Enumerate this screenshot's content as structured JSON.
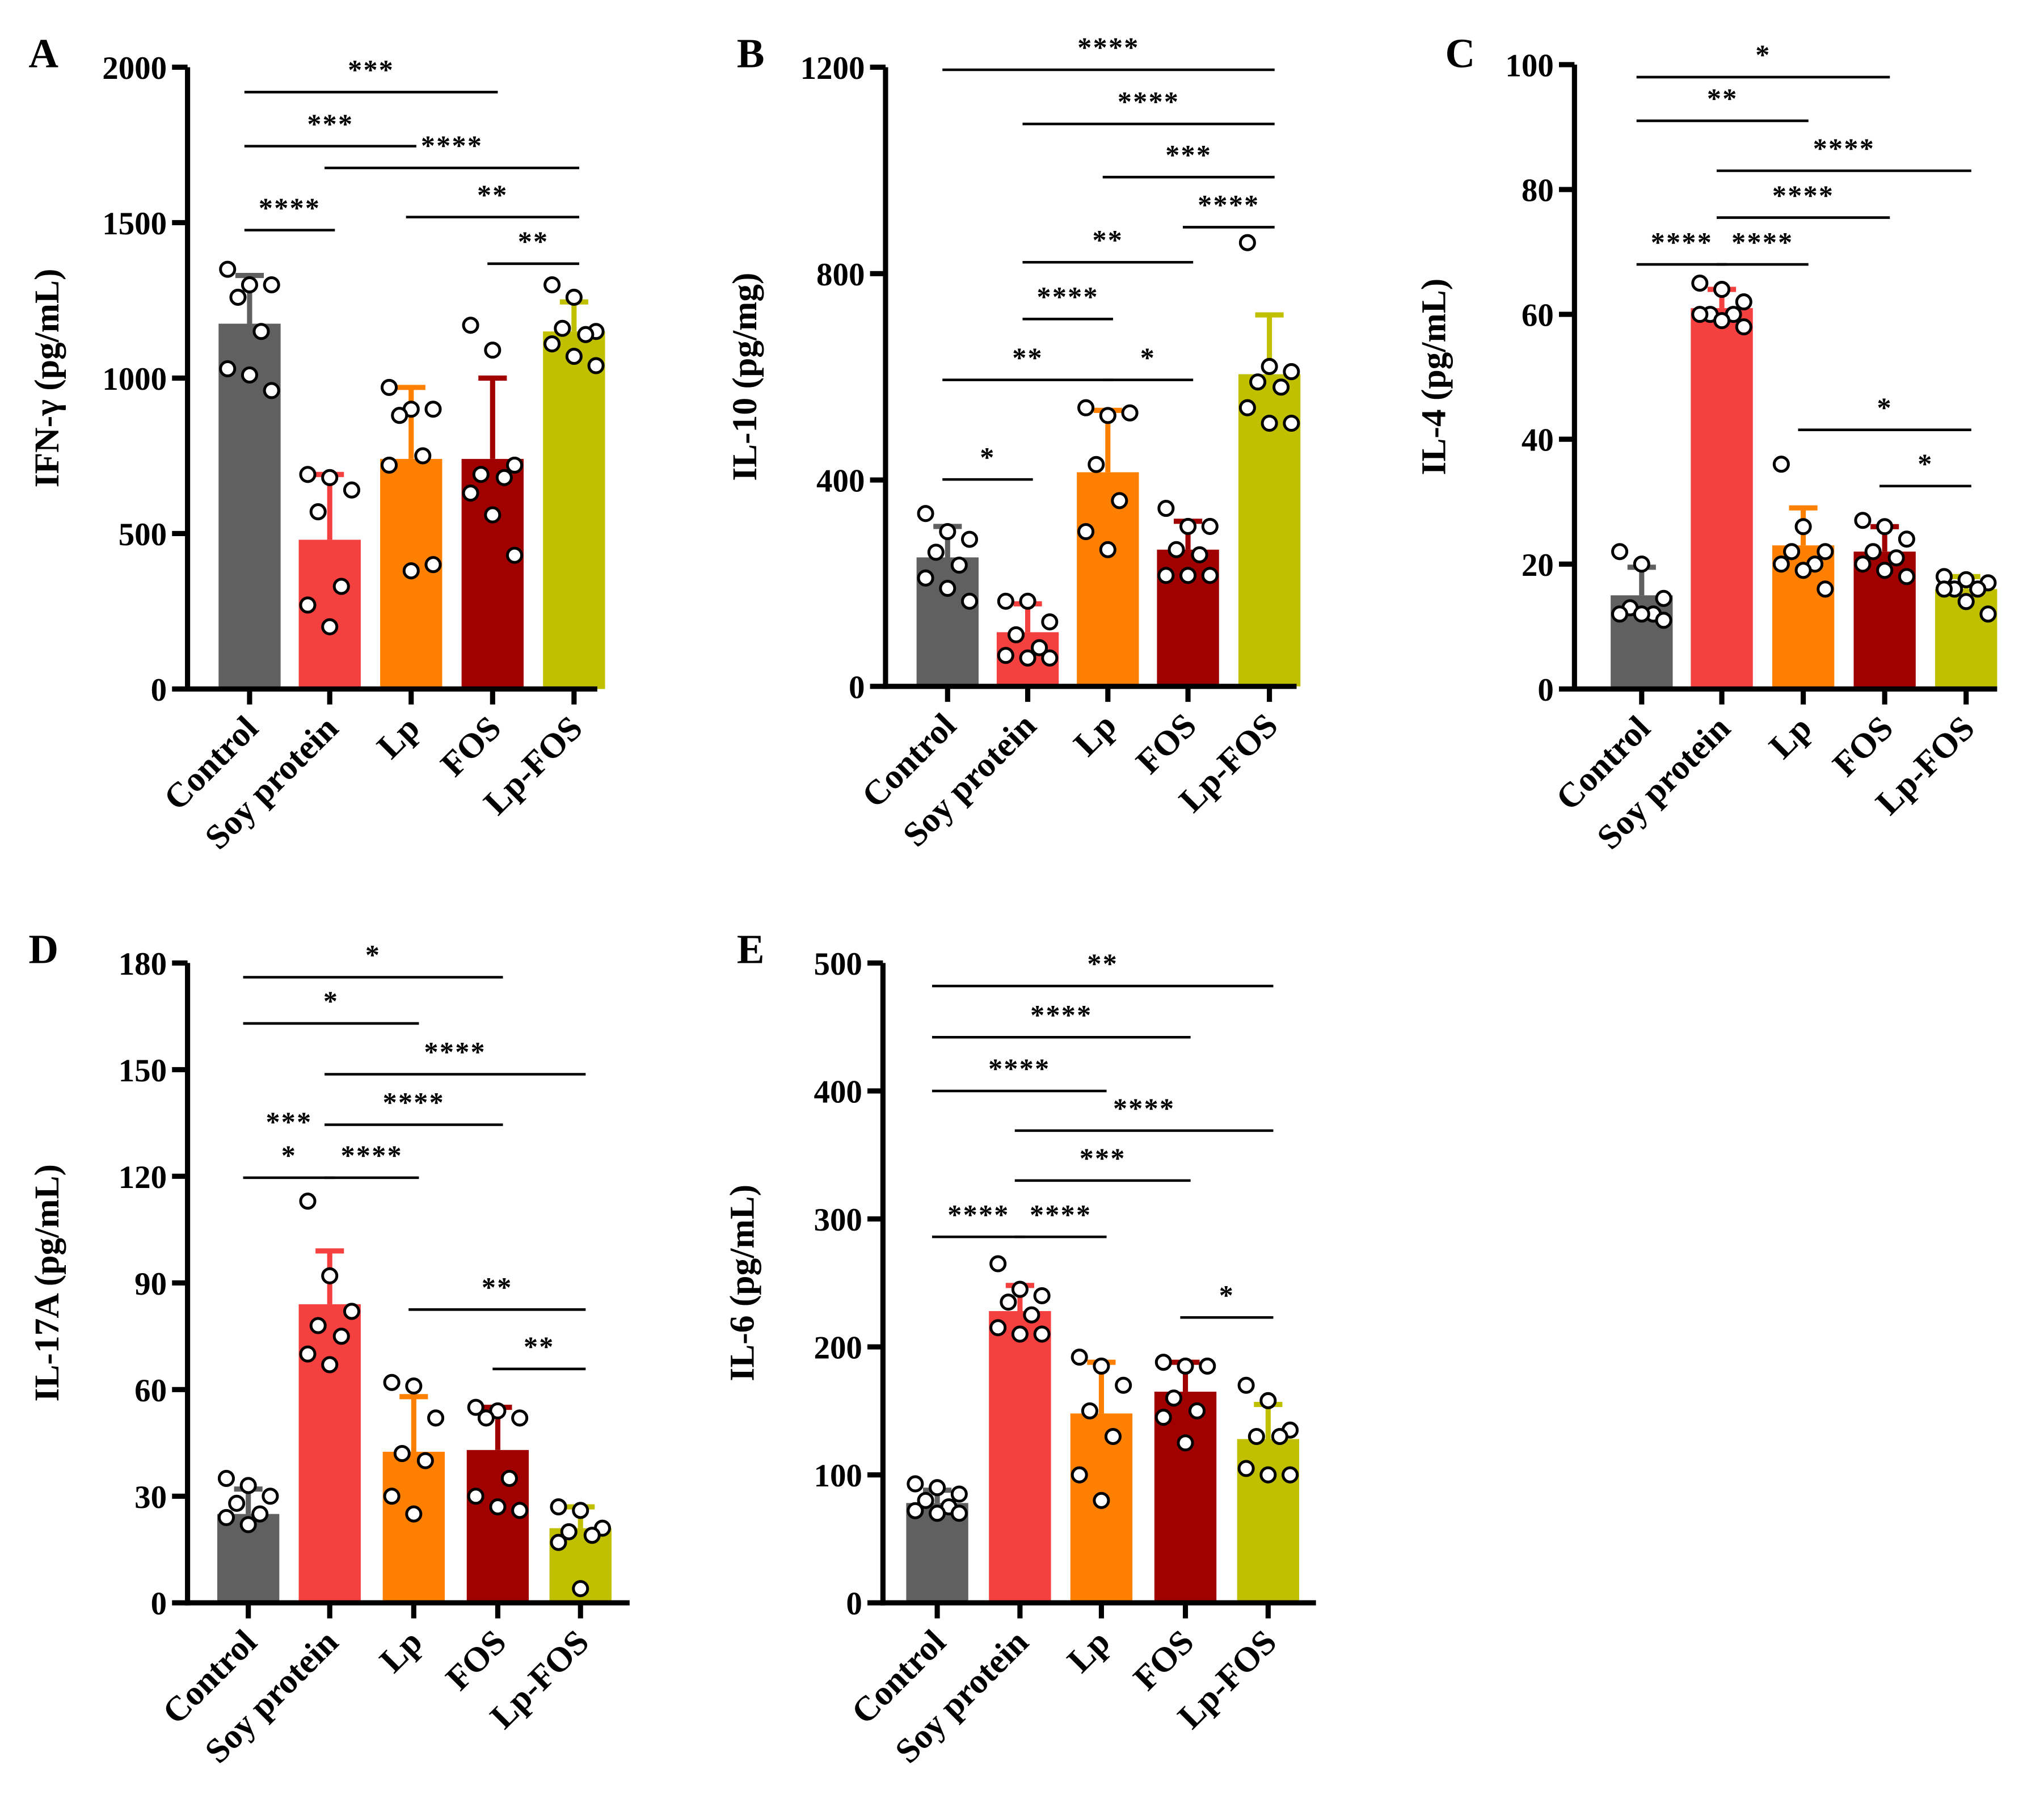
{
  "groups": [
    "Control",
    "Soy protein",
    "Lp",
    "FOS",
    "Lp-FOS"
  ],
  "colors": [
    "#606060",
    "#f54040",
    "#ff8000",
    "#a00000",
    "#c0c000"
  ],
  "chart_data": [
    {
      "panel": "A",
      "type": "bar",
      "ylabel": "IFN-γ (pg/mL)",
      "ylim": [
        0,
        2000
      ],
      "yticks": [
        0,
        500,
        1000,
        1500,
        2000
      ],
      "categories": [
        "Control",
        "Soy protein",
        "Lp",
        "FOS",
        "Lp-FOS"
      ],
      "values": [
        1175,
        480,
        740,
        740,
        1150
      ],
      "error_upper": [
        1330,
        690,
        970,
        1000,
        1245
      ],
      "points": [
        [
          1350,
          1300,
          1300,
          1260,
          1150,
          1030,
          1010,
          960
        ],
        [
          690,
          680,
          640,
          570,
          330,
          270,
          200
        ],
        [
          970,
          900,
          900,
          880,
          750,
          720,
          380,
          400
        ],
        [
          1170,
          1090,
          720,
          690,
          680,
          630,
          560,
          430
        ],
        [
          1300,
          1260,
          1150,
          1160,
          1140,
          1110,
          1070,
          1040
        ]
      ],
      "significance": [
        {
          "from": 0,
          "to": 3,
          "y": 1920,
          "label": "***"
        },
        {
          "from": 0,
          "to": 2,
          "y": 1746,
          "label": "***"
        },
        {
          "from": 1,
          "to": 4,
          "y": 1676,
          "label": "****"
        },
        {
          "from": 2,
          "to": 4,
          "y": 1518,
          "label": "**"
        },
        {
          "from": 0,
          "to": 1,
          "y": 1476,
          "label": "****"
        },
        {
          "from": 3,
          "to": 4,
          "y": 1368,
          "label": "**"
        }
      ]
    },
    {
      "panel": "B",
      "type": "bar",
      "ylabel": "IL-10 (pg/mg)",
      "ylim": [
        0,
        1200
      ],
      "yticks": [
        0,
        400,
        800,
        1200
      ],
      "categories": [
        "Control",
        "Soy protein",
        "Lp",
        "FOS",
        "Lp-FOS"
      ],
      "values": [
        250,
        105,
        415,
        265,
        605
      ],
      "error_upper": [
        310,
        160,
        535,
        320,
        720
      ],
      "points": [
        [
          335,
          300,
          285,
          260,
          235,
          210,
          190,
          165
        ],
        [
          165,
          165,
          125,
          100,
          75,
          60,
          55,
          55
        ],
        [
          540,
          525,
          530,
          430,
          360,
          300,
          265
        ],
        [
          345,
          310,
          310,
          265,
          255,
          215,
          215,
          215
        ],
        [
          860,
          620,
          610,
          590,
          580,
          540,
          510,
          510
        ]
      ],
      "significance": [
        {
          "from": 0,
          "to": 4,
          "y": 1195,
          "label": "****"
        },
        {
          "from": 1,
          "to": 4,
          "y": 1090,
          "label": "****"
        },
        {
          "from": 2,
          "to": 4,
          "y": 987,
          "label": "***"
        },
        {
          "from": 3,
          "to": 4,
          "y": 890,
          "label": "****"
        },
        {
          "from": 1,
          "to": 3,
          "y": 822,
          "label": "**"
        },
        {
          "from": 1,
          "to": 2,
          "y": 712,
          "label": "****"
        },
        {
          "from": 0,
          "to": 2,
          "y": 594,
          "label": "**"
        },
        {
          "from": 2,
          "to": 3,
          "y": 594,
          "label": "*"
        },
        {
          "from": 0,
          "to": 1,
          "y": 401,
          "label": "*"
        }
      ]
    },
    {
      "panel": "C",
      "type": "bar",
      "ylabel": "IL-4 (pg/mL)",
      "ylim": [
        0,
        100
      ],
      "yticks": [
        0,
        20,
        40,
        60,
        80,
        100
      ],
      "categories": [
        "Control",
        "Soy protein",
        "Lp",
        "FOS",
        "Lp-FOS"
      ],
      "values": [
        15,
        61,
        23,
        22,
        16
      ],
      "error_upper": [
        19.5,
        64,
        29,
        26,
        18
      ],
      "points": [
        [
          22,
          20,
          14.5,
          13,
          12,
          12,
          12,
          11
        ],
        [
          65,
          64,
          62,
          60,
          60,
          60,
          59,
          58
        ],
        [
          36,
          26,
          22,
          22,
          20,
          20,
          19,
          16
        ],
        [
          27,
          26,
          24,
          22,
          21,
          20,
          19,
          18
        ],
        [
          18,
          17.5,
          17,
          16,
          16,
          16,
          14,
          12
        ]
      ],
      "significance": [
        {
          "from": 0,
          "to": 3,
          "y": 98,
          "label": "*"
        },
        {
          "from": 0,
          "to": 2,
          "y": 91,
          "label": "**"
        },
        {
          "from": 1,
          "to": 4,
          "y": 83,
          "label": "****"
        },
        {
          "from": 1,
          "to": 3,
          "y": 75.5,
          "label": "****"
        },
        {
          "from": 0,
          "to": 1,
          "y": 68,
          "label": "****"
        },
        {
          "from": 1,
          "to": 2,
          "y": 68,
          "label": "****"
        },
        {
          "from": 2,
          "to": 4,
          "y": 41.5,
          "label": "*"
        },
        {
          "from": 3,
          "to": 4,
          "y": 32.5,
          "label": "*"
        }
      ]
    },
    {
      "panel": "D",
      "type": "bar",
      "ylabel": "IL-17A (pg/mL)",
      "ylim": [
        0,
        180
      ],
      "yticks": [
        0,
        30,
        60,
        90,
        120,
        150,
        180
      ],
      "categories": [
        "Control",
        "Soy protein",
        "Lp",
        "FOS",
        "Lp-FOS"
      ],
      "values": [
        25,
        84,
        42.5,
        43,
        21
      ],
      "error_upper": [
        32,
        99,
        58,
        55,
        27
      ],
      "points": [
        [
          35,
          33,
          30,
          28,
          25,
          24,
          22
        ],
        [
          113,
          92,
          82,
          78,
          75,
          70,
          67
        ],
        [
          62,
          61,
          52,
          42,
          40,
          30,
          25
        ],
        [
          55,
          54,
          52,
          52,
          35,
          30,
          27,
          26
        ],
        [
          27,
          26,
          21,
          20,
          19,
          17,
          4
        ]
      ],
      "significance": [
        {
          "from": 0,
          "to": 3,
          "y": 176,
          "label": "*"
        },
        {
          "from": 0,
          "to": 2,
          "y": 163,
          "label": "*"
        },
        {
          "from": 1,
          "to": 4,
          "y": 148.7,
          "label": "****"
        },
        {
          "from": 1,
          "to": 3,
          "y": 134.5,
          "label": "****"
        },
        {
          "from": 0,
          "to": 1,
          "y": 119.6,
          "label": "*",
          "extra_label": "***"
        },
        {
          "from": 1,
          "to": 2,
          "y": 119.6,
          "label": "****"
        },
        {
          "from": 2,
          "to": 4,
          "y": 82.5,
          "label": "**"
        },
        {
          "from": 3,
          "to": 4,
          "y": 65.8,
          "label": "**"
        }
      ]
    },
    {
      "panel": "E",
      "type": "bar",
      "ylabel": "IL-6 (pg/mL)",
      "ylim": [
        0,
        500
      ],
      "yticks": [
        0,
        100,
        200,
        300,
        400,
        500
      ],
      "categories": [
        "Control",
        "Soy protein",
        "Lp",
        "FOS",
        "Lp-FOS"
      ],
      "values": [
        78,
        228,
        148,
        165,
        128
      ],
      "error_upper": [
        88,
        248,
        188,
        188,
        155
      ],
      "points": [
        [
          93,
          90,
          85,
          80,
          75,
          72,
          70,
          70
        ],
        [
          265,
          245,
          240,
          235,
          225,
          215,
          210,
          210
        ],
        [
          192,
          185,
          170,
          150,
          130,
          100,
          80
        ],
        [
          188,
          185,
          185,
          160,
          150,
          145,
          125
        ],
        [
          170,
          158,
          135,
          130,
          130,
          105,
          100,
          100
        ]
      ],
      "significance": [
        {
          "from": 0,
          "to": 4,
          "y": 482,
          "label": "**"
        },
        {
          "from": 0,
          "to": 3,
          "y": 442,
          "label": "****"
        },
        {
          "from": 0,
          "to": 2,
          "y": 400,
          "label": "****"
        },
        {
          "from": 1,
          "to": 4,
          "y": 369,
          "label": "****"
        },
        {
          "from": 1,
          "to": 3,
          "y": 330,
          "label": "***"
        },
        {
          "from": 0,
          "to": 1,
          "y": 286,
          "label": "****"
        },
        {
          "from": 1,
          "to": 2,
          "y": 286,
          "label": "****"
        },
        {
          "from": 3,
          "to": 4,
          "y": 223,
          "label": "*"
        }
      ]
    }
  ]
}
